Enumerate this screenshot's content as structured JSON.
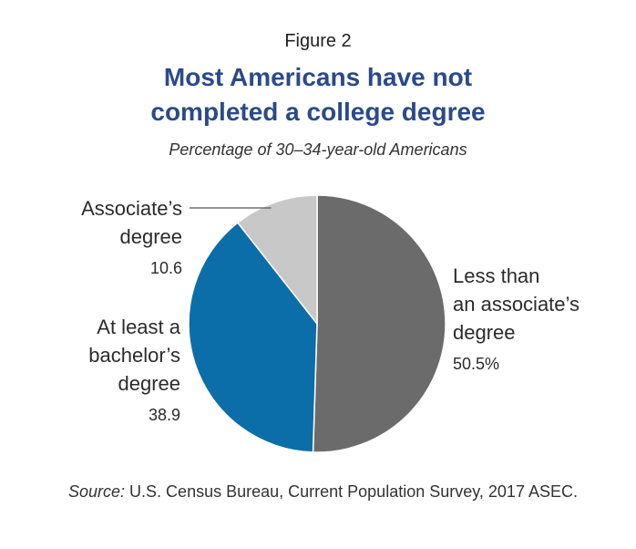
{
  "figure_label": "Figure 2",
  "title_line1": "Most Americans have not",
  "title_line2": "completed a college degree",
  "subtitle": "Percentage of 30–34-year-old Americans",
  "source_label": "Source:",
  "source_text": " U.S. Census Bureau, Current Population Survey, 2017 ASEC.",
  "colors": {
    "less_than_associate": "#6b6b6b",
    "bachelor": "#0b6ea8",
    "associate": "#c8c8c8",
    "title": "#2a4a8a"
  },
  "chart_data": {
    "type": "pie",
    "title": "Most Americans have not completed a college degree",
    "subtitle": "Percentage of 30–34-year-old Americans",
    "slices": [
      {
        "label_line1": "Less than",
        "label_line2": "an associate’s",
        "label_line3": "degree",
        "value": 50.5,
        "value_label": "50.5%",
        "color": "#6b6b6b"
      },
      {
        "label_line1": "At least a",
        "label_line2": "bachelor’s",
        "label_line3": "degree",
        "value": 38.9,
        "value_label": "38.9",
        "color": "#0b6ea8"
      },
      {
        "label_line1": "Associate’s",
        "label_line2": "degree",
        "value": 10.6,
        "value_label": "10.6",
        "color": "#c8c8c8"
      }
    ]
  }
}
